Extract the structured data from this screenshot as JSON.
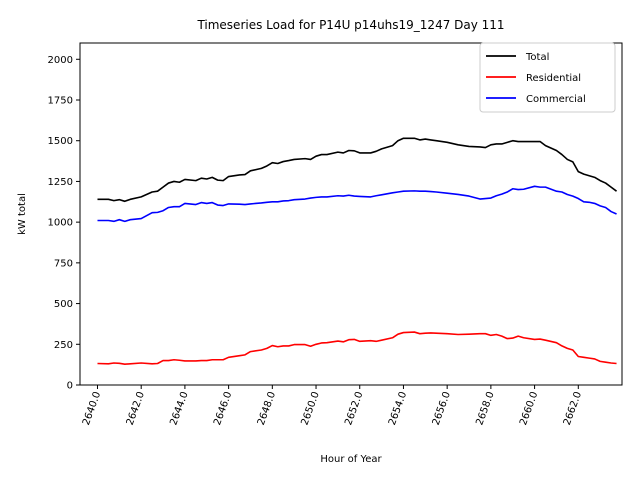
{
  "chart_data": {
    "type": "line",
    "title": "Timeseries Load for P14U p14uhs19_1247  Day 111",
    "xlabel": "Hour of Year",
    "ylabel": "kW total",
    "xlim": [
      2639.2,
      2664.0
    ],
    "ylim": [
      0,
      2100
    ],
    "x_ticks": [
      2640,
      2642,
      2644,
      2646,
      2648,
      2650,
      2652,
      2654,
      2656,
      2658,
      2660,
      2662
    ],
    "x_tick_labels": [
      "2640.0",
      "2642.0",
      "2644.0",
      "2646.0",
      "2648.0",
      "2650.0",
      "2652.0",
      "2654.0",
      "2656.0",
      "2658.0",
      "2660.0",
      "2662.0"
    ],
    "y_ticks": [
      0,
      250,
      500,
      750,
      1000,
      1250,
      1500,
      1750,
      2000
    ],
    "y_tick_labels": [
      "0",
      "250",
      "500",
      "750",
      "1000",
      "1250",
      "1500",
      "1750",
      "2000"
    ],
    "legend_position": "top-right",
    "grid": false,
    "series": [
      {
        "name": "Total",
        "color": "#000000",
        "points": [
          [
            2640,
            1140
          ],
          [
            2640.5,
            1140
          ],
          [
            2640.75,
            1132
          ],
          [
            2641,
            1138
          ],
          [
            2641.25,
            1128
          ],
          [
            2641.5,
            1140
          ],
          [
            2642,
            1155
          ],
          [
            2642.5,
            1185
          ],
          [
            2642.75,
            1190
          ],
          [
            2643,
            1215
          ],
          [
            2643.25,
            1240
          ],
          [
            2643.5,
            1250
          ],
          [
            2643.75,
            1245
          ],
          [
            2644,
            1262
          ],
          [
            2644.5,
            1255
          ],
          [
            2644.75,
            1270
          ],
          [
            2645,
            1265
          ],
          [
            2645.25,
            1275
          ],
          [
            2645.5,
            1258
          ],
          [
            2645.75,
            1255
          ],
          [
            2646,
            1280
          ],
          [
            2646.5,
            1290
          ],
          [
            2646.75,
            1292
          ],
          [
            2647,
            1315
          ],
          [
            2647.5,
            1330
          ],
          [
            2647.75,
            1345
          ],
          [
            2648,
            1365
          ],
          [
            2648.25,
            1360
          ],
          [
            2648.5,
            1372
          ],
          [
            2648.75,
            1378
          ],
          [
            2649,
            1385
          ],
          [
            2649.5,
            1390
          ],
          [
            2649.75,
            1385
          ],
          [
            2650,
            1405
          ],
          [
            2650.25,
            1415
          ],
          [
            2650.5,
            1415
          ],
          [
            2651,
            1430
          ],
          [
            2651.25,
            1425
          ],
          [
            2651.5,
            1440
          ],
          [
            2651.75,
            1438
          ],
          [
            2652,
            1425
          ],
          [
            2652.5,
            1425
          ],
          [
            2652.75,
            1435
          ],
          [
            2653,
            1450
          ],
          [
            2653.5,
            1470
          ],
          [
            2653.75,
            1500
          ],
          [
            2654,
            1515
          ],
          [
            2654.5,
            1515
          ],
          [
            2654.75,
            1505
          ],
          [
            2655,
            1510
          ],
          [
            2655.25,
            1505
          ],
          [
            2655.5,
            1500
          ],
          [
            2656,
            1490
          ],
          [
            2656.5,
            1475
          ],
          [
            2657,
            1465
          ],
          [
            2657.5,
            1462
          ],
          [
            2657.75,
            1458
          ],
          [
            2658,
            1475
          ],
          [
            2658.25,
            1480
          ],
          [
            2658.5,
            1480
          ],
          [
            2658.75,
            1490
          ],
          [
            2659,
            1500
          ],
          [
            2659.25,
            1495
          ],
          [
            2659.5,
            1495
          ],
          [
            2660,
            1495
          ],
          [
            2660.25,
            1495
          ],
          [
            2660.5,
            1470
          ],
          [
            2661,
            1440
          ],
          [
            2661.25,
            1415
          ],
          [
            2661.5,
            1385
          ],
          [
            2661.75,
            1370
          ],
          [
            2662,
            1310
          ],
          [
            2662.25,
            1295
          ],
          [
            2662.5,
            1285
          ],
          [
            2662.75,
            1275
          ],
          [
            2663,
            1255
          ],
          [
            2663.25,
            1240
          ],
          [
            2663.5,
            1215
          ],
          [
            2663.75,
            1190
          ]
        ]
      },
      {
        "name": "Residential",
        "color": "#ff0000",
        "points": [
          [
            2640,
            132
          ],
          [
            2640.5,
            130
          ],
          [
            2640.75,
            135
          ],
          [
            2641,
            133
          ],
          [
            2641.25,
            128
          ],
          [
            2641.5,
            130
          ],
          [
            2642,
            135
          ],
          [
            2642.5,
            130
          ],
          [
            2642.75,
            132
          ],
          [
            2643,
            150
          ],
          [
            2643.25,
            150
          ],
          [
            2643.5,
            155
          ],
          [
            2643.75,
            152
          ],
          [
            2644,
            148
          ],
          [
            2644.5,
            148
          ],
          [
            2644.75,
            150
          ],
          [
            2645,
            150
          ],
          [
            2645.25,
            155
          ],
          [
            2645.5,
            155
          ],
          [
            2645.75,
            155
          ],
          [
            2646,
            170
          ],
          [
            2646.5,
            180
          ],
          [
            2646.75,
            185
          ],
          [
            2647,
            205
          ],
          [
            2647.5,
            215
          ],
          [
            2647.75,
            225
          ],
          [
            2648,
            242
          ],
          [
            2648.25,
            235
          ],
          [
            2648.5,
            240
          ],
          [
            2648.75,
            240
          ],
          [
            2649,
            248
          ],
          [
            2649.5,
            248
          ],
          [
            2649.75,
            238
          ],
          [
            2650,
            250
          ],
          [
            2650.25,
            258
          ],
          [
            2650.5,
            260
          ],
          [
            2651,
            270
          ],
          [
            2651.25,
            265
          ],
          [
            2651.5,
            278
          ],
          [
            2651.75,
            280
          ],
          [
            2652,
            268
          ],
          [
            2652.5,
            272
          ],
          [
            2652.75,
            268
          ],
          [
            2653,
            275
          ],
          [
            2653.5,
            290
          ],
          [
            2653.75,
            312
          ],
          [
            2654,
            322
          ],
          [
            2654.5,
            325
          ],
          [
            2654.75,
            315
          ],
          [
            2655,
            318
          ],
          [
            2655.25,
            320
          ],
          [
            2655.5,
            318
          ],
          [
            2656,
            315
          ],
          [
            2656.5,
            310
          ],
          [
            2657,
            312
          ],
          [
            2657.5,
            315
          ],
          [
            2657.75,
            315
          ],
          [
            2658,
            305
          ],
          [
            2658.25,
            310
          ],
          [
            2658.5,
            300
          ],
          [
            2658.75,
            285
          ],
          [
            2659,
            288
          ],
          [
            2659.25,
            300
          ],
          [
            2659.5,
            290
          ],
          [
            2660,
            280
          ],
          [
            2660.25,
            282
          ],
          [
            2660.5,
            275
          ],
          [
            2661,
            260
          ],
          [
            2661.25,
            240
          ],
          [
            2661.5,
            225
          ],
          [
            2661.75,
            215
          ],
          [
            2662,
            175
          ],
          [
            2662.25,
            170
          ],
          [
            2662.5,
            165
          ],
          [
            2662.75,
            160
          ],
          [
            2663,
            145
          ],
          [
            2663.25,
            140
          ],
          [
            2663.5,
            135
          ],
          [
            2663.75,
            132
          ]
        ]
      },
      {
        "name": "Commercial",
        "color": "#0000ff",
        "points": [
          [
            2640,
            1010
          ],
          [
            2640.5,
            1010
          ],
          [
            2640.75,
            1005
          ],
          [
            2641,
            1015
          ],
          [
            2641.25,
            1005
          ],
          [
            2641.5,
            1015
          ],
          [
            2642,
            1022
          ],
          [
            2642.5,
            1058
          ],
          [
            2642.75,
            1060
          ],
          [
            2643,
            1070
          ],
          [
            2643.25,
            1090
          ],
          [
            2643.5,
            1095
          ],
          [
            2643.75,
            1095
          ],
          [
            2644,
            1115
          ],
          [
            2644.5,
            1108
          ],
          [
            2644.75,
            1120
          ],
          [
            2645,
            1115
          ],
          [
            2645.25,
            1120
          ],
          [
            2645.5,
            1105
          ],
          [
            2645.75,
            1102
          ],
          [
            2646,
            1112
          ],
          [
            2646.5,
            1110
          ],
          [
            2646.75,
            1108
          ],
          [
            2647,
            1112
          ],
          [
            2647.5,
            1118
          ],
          [
            2647.75,
            1122
          ],
          [
            2648,
            1125
          ],
          [
            2648.25,
            1125
          ],
          [
            2648.5,
            1130
          ],
          [
            2648.75,
            1132
          ],
          [
            2649,
            1138
          ],
          [
            2649.5,
            1142
          ],
          [
            2649.75,
            1148
          ],
          [
            2650,
            1152
          ],
          [
            2650.25,
            1155
          ],
          [
            2650.5,
            1155
          ],
          [
            2651,
            1162
          ],
          [
            2651.25,
            1160
          ],
          [
            2651.5,
            1165
          ],
          [
            2651.75,
            1160
          ],
          [
            2652,
            1158
          ],
          [
            2652.5,
            1155
          ],
          [
            2652.75,
            1162
          ],
          [
            2653,
            1168
          ],
          [
            2653.5,
            1180
          ],
          [
            2653.75,
            1185
          ],
          [
            2654,
            1190
          ],
          [
            2654.5,
            1192
          ],
          [
            2654.75,
            1190
          ],
          [
            2655,
            1190
          ],
          [
            2655.25,
            1188
          ],
          [
            2655.5,
            1185
          ],
          [
            2656,
            1178
          ],
          [
            2656.5,
            1170
          ],
          [
            2657,
            1160
          ],
          [
            2657.5,
            1142
          ],
          [
            2657.75,
            1145
          ],
          [
            2658,
            1148
          ],
          [
            2658.25,
            1162
          ],
          [
            2658.5,
            1172
          ],
          [
            2658.75,
            1185
          ],
          [
            2659,
            1205
          ],
          [
            2659.25,
            1200
          ],
          [
            2659.5,
            1202
          ],
          [
            2660,
            1220
          ],
          [
            2660.25,
            1215
          ],
          [
            2660.5,
            1215
          ],
          [
            2661,
            1190
          ],
          [
            2661.25,
            1185
          ],
          [
            2661.5,
            1170
          ],
          [
            2661.75,
            1160
          ],
          [
            2662,
            1145
          ],
          [
            2662.25,
            1125
          ],
          [
            2662.5,
            1122
          ],
          [
            2662.75,
            1115
          ],
          [
            2663,
            1100
          ],
          [
            2663.25,
            1090
          ],
          [
            2663.5,
            1065
          ],
          [
            2663.75,
            1050
          ]
        ]
      }
    ]
  }
}
